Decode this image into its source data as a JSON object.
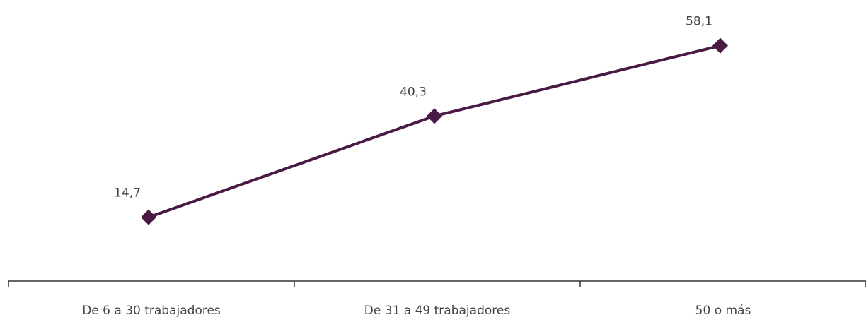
{
  "chart_data": {
    "type": "line",
    "categories": [
      "De 6 a 30 trabajadores",
      "De 31 a 49 trabajadores",
      "50 o más"
    ],
    "series": [
      {
        "name": null,
        "color": "#4b1a44",
        "values": [
          14.7,
          40.3,
          58.1
        ],
        "value_labels": [
          "14,7",
          "40,3",
          "58,1"
        ]
      }
    ],
    "ylim": [
      0,
      60
    ]
  }
}
